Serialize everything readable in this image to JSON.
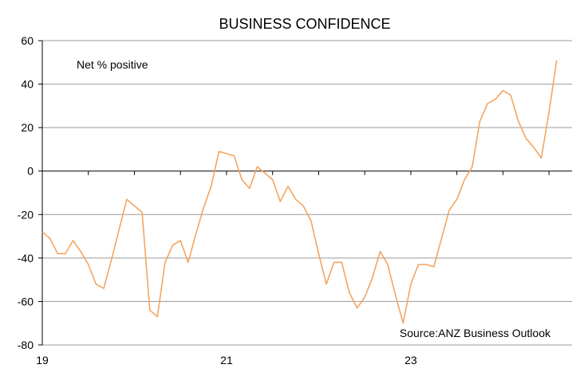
{
  "chart_data": {
    "type": "line",
    "title": "BUSINESS CONFIDENCE",
    "ylabel": "",
    "xlabel": "",
    "annotations": [
      "Net % positive",
      "Source:ANZ  Business Outlook"
    ],
    "ylim": [
      -80,
      60
    ],
    "yticks": [
      -80,
      -60,
      -40,
      -20,
      0,
      20,
      40,
      60
    ],
    "xlim": [
      2019.0,
      2024.75
    ],
    "xticks": [
      {
        "value": 2019,
        "label": "19"
      },
      {
        "value": 2021,
        "label": "21"
      },
      {
        "value": 2023,
        "label": "23"
      }
    ],
    "grid": true,
    "line_color": "#F4A460",
    "series": [
      {
        "x": [
          2019.0,
          2019.083,
          2019.167,
          2019.25,
          2019.333,
          2019.417,
          2019.5,
          2019.583,
          2019.667,
          2019.75,
          2019.833,
          2019.917,
          2020.0,
          2020.083,
          2020.167,
          2020.25,
          2020.333,
          2020.417,
          2020.5,
          2020.583,
          2020.667,
          2020.75,
          2020.833,
          2020.917,
          2021.0,
          2021.083,
          2021.167,
          2021.25,
          2021.333,
          2021.417,
          2021.5,
          2021.583,
          2021.667,
          2021.75,
          2021.833,
          2021.917,
          2022.0,
          2022.083,
          2022.167,
          2022.25,
          2022.333,
          2022.417,
          2022.5,
          2022.583,
          2022.667,
          2022.75,
          2022.833,
          2022.917,
          2023.0,
          2023.083,
          2023.167,
          2023.25,
          2023.333,
          2023.417,
          2023.5,
          2023.583,
          2023.667,
          2023.75,
          2023.833,
          2023.917,
          2024.0,
          2024.083,
          2024.167,
          2024.25,
          2024.333,
          2024.417,
          2024.5,
          2024.583
        ],
        "values": [
          -28,
          -31,
          -38,
          -38,
          -32,
          -37,
          -43,
          -52,
          -54,
          -41,
          -27,
          -13,
          -16,
          -19,
          -64,
          -67,
          -42,
          -34,
          -32,
          -42,
          -29,
          -17,
          -7,
          9,
          8,
          7,
          -4,
          -8,
          2,
          -1,
          -4,
          -14,
          -7,
          -13,
          -16,
          -23,
          -38,
          -52,
          -42,
          -42,
          -56,
          -63,
          -58,
          -49,
          -37,
          -43,
          -57,
          -70,
          -52,
          -43,
          -43,
          -44,
          -31,
          -18,
          -13,
          -4,
          2,
          23,
          31,
          33,
          37,
          35,
          23,
          15,
          11,
          6,
          27,
          51
        ]
      }
    ]
  }
}
